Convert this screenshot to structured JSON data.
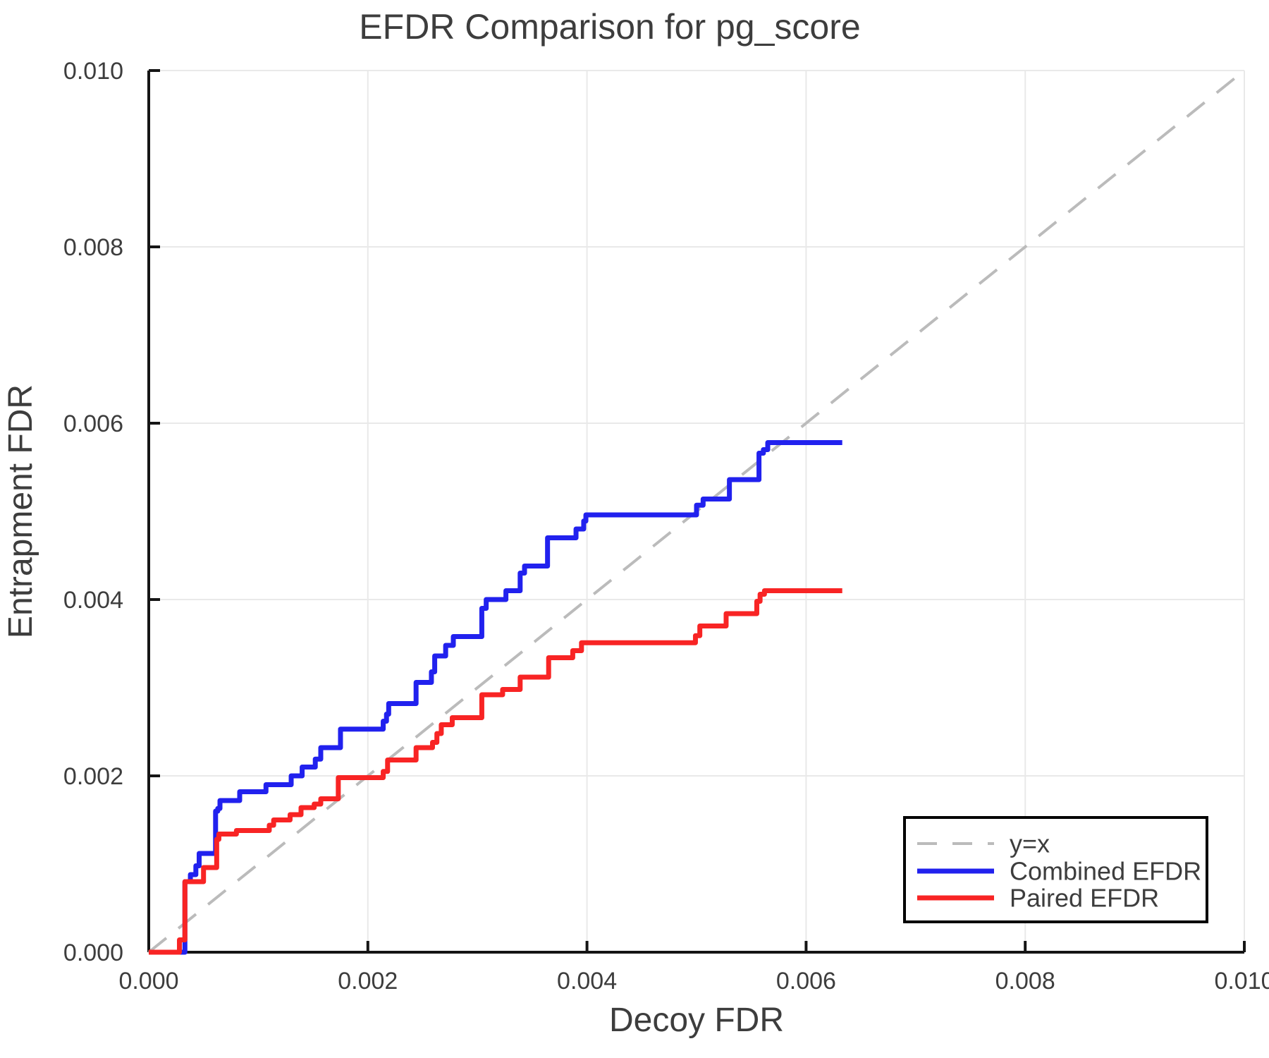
{
  "figure": {
    "background": "#ffffff"
  },
  "chart_data": {
    "type": "line",
    "title": "EFDR Comparison for pg_score",
    "xlabel": "Decoy FDR",
    "ylabel": "Entrapment FDR",
    "xlim": [
      0,
      0.01
    ],
    "ylim": [
      0,
      0.01
    ],
    "grid": true,
    "xtick_values": [
      0,
      0.002,
      0.004,
      0.006,
      0.008,
      0.01
    ],
    "xtick_labels": [
      "0.000",
      "0.002",
      "0.004",
      "0.006",
      "0.008",
      "0.010"
    ],
    "ytick_values": [
      0,
      0.002,
      0.004,
      0.006,
      0.008,
      0.01
    ],
    "ytick_labels": [
      "0.000",
      "0.002",
      "0.004",
      "0.006",
      "0.008",
      "0.010"
    ],
    "colors": {
      "grid": "#e9e9e9",
      "axis": "#151515",
      "text": "#3d3d3d",
      "diagonal": "#bbbbbb",
      "combined": "#2121ee",
      "paired": "#f82424"
    },
    "legend": {
      "position": "bottom-right",
      "entries": [
        {
          "label": "y=x"
        },
        {
          "label": "Combined EFDR"
        },
        {
          "label": "Paired EFDR"
        }
      ]
    },
    "series": [
      {
        "name": "y=x",
        "type": "line",
        "style": "dashed",
        "color": "#bbbbbb",
        "points": [
          [
            0,
            0
          ],
          [
            0.01,
            0.01
          ]
        ]
      },
      {
        "name": "Combined EFDR",
        "type": "step",
        "style": "solid",
        "color": "#2121ee",
        "points": [
          [
            0.0,
            0.0
          ],
          [
            0.00033,
            0.0008
          ],
          [
            0.00038,
            0.00088
          ],
          [
            0.00043,
            0.00098
          ],
          [
            0.00046,
            0.00112
          ],
          [
            0.00061,
            0.0016
          ],
          [
            0.00063,
            0.00163
          ],
          [
            0.00065,
            0.00172
          ],
          [
            0.00083,
            0.00182
          ],
          [
            0.00107,
            0.0019
          ],
          [
            0.0013,
            0.002
          ],
          [
            0.0014,
            0.0021
          ],
          [
            0.00152,
            0.00219
          ],
          [
            0.00157,
            0.00232
          ],
          [
            0.00175,
            0.00253
          ],
          [
            0.00214,
            0.00262
          ],
          [
            0.00217,
            0.0027
          ],
          [
            0.00219,
            0.00282
          ],
          [
            0.00244,
            0.00306
          ],
          [
            0.00258,
            0.00318
          ],
          [
            0.00261,
            0.00336
          ],
          [
            0.00271,
            0.00348
          ],
          [
            0.00278,
            0.00358
          ],
          [
            0.00304,
            0.0039
          ],
          [
            0.00308,
            0.004
          ],
          [
            0.00326,
            0.0041
          ],
          [
            0.00339,
            0.0043
          ],
          [
            0.00343,
            0.00438
          ],
          [
            0.00364,
            0.0047
          ],
          [
            0.0039,
            0.0048
          ],
          [
            0.00397,
            0.00489
          ],
          [
            0.00399,
            0.00496
          ],
          [
            0.005,
            0.00507
          ],
          [
            0.00506,
            0.00514
          ],
          [
            0.0053,
            0.00536
          ],
          [
            0.00557,
            0.00566
          ],
          [
            0.00561,
            0.0057
          ],
          [
            0.00565,
            0.00578
          ],
          [
            0.00633,
            0.00578
          ]
        ]
      },
      {
        "name": "Paired EFDR",
        "type": "step",
        "style": "solid",
        "color": "#f82424",
        "points": [
          [
            0.0,
            0.0
          ],
          [
            0.00028,
            0.00014
          ],
          [
            0.00033,
            0.0008
          ],
          [
            0.0005,
            0.00096
          ],
          [
            0.00062,
            0.00128
          ],
          [
            0.00064,
            0.00134
          ],
          [
            0.0008,
            0.00138
          ],
          [
            0.0011,
            0.00144
          ],
          [
            0.00114,
            0.0015
          ],
          [
            0.00129,
            0.00156
          ],
          [
            0.00139,
            0.00164
          ],
          [
            0.00151,
            0.00168
          ],
          [
            0.00157,
            0.00174
          ],
          [
            0.00173,
            0.00198
          ],
          [
            0.00214,
            0.00205
          ],
          [
            0.00218,
            0.00218
          ],
          [
            0.00244,
            0.00232
          ],
          [
            0.00259,
            0.00238
          ],
          [
            0.00263,
            0.00248
          ],
          [
            0.00267,
            0.00258
          ],
          [
            0.00277,
            0.00266
          ],
          [
            0.00304,
            0.00292
          ],
          [
            0.00323,
            0.00298
          ],
          [
            0.00339,
            0.00312
          ],
          [
            0.00365,
            0.00334
          ],
          [
            0.00387,
            0.00342
          ],
          [
            0.00395,
            0.00351
          ],
          [
            0.00499,
            0.00359
          ],
          [
            0.00503,
            0.0037
          ],
          [
            0.00527,
            0.00384
          ],
          [
            0.00555,
            0.00398
          ],
          [
            0.00558,
            0.00406
          ],
          [
            0.00562,
            0.0041
          ],
          [
            0.00633,
            0.0041
          ]
        ]
      }
    ]
  }
}
